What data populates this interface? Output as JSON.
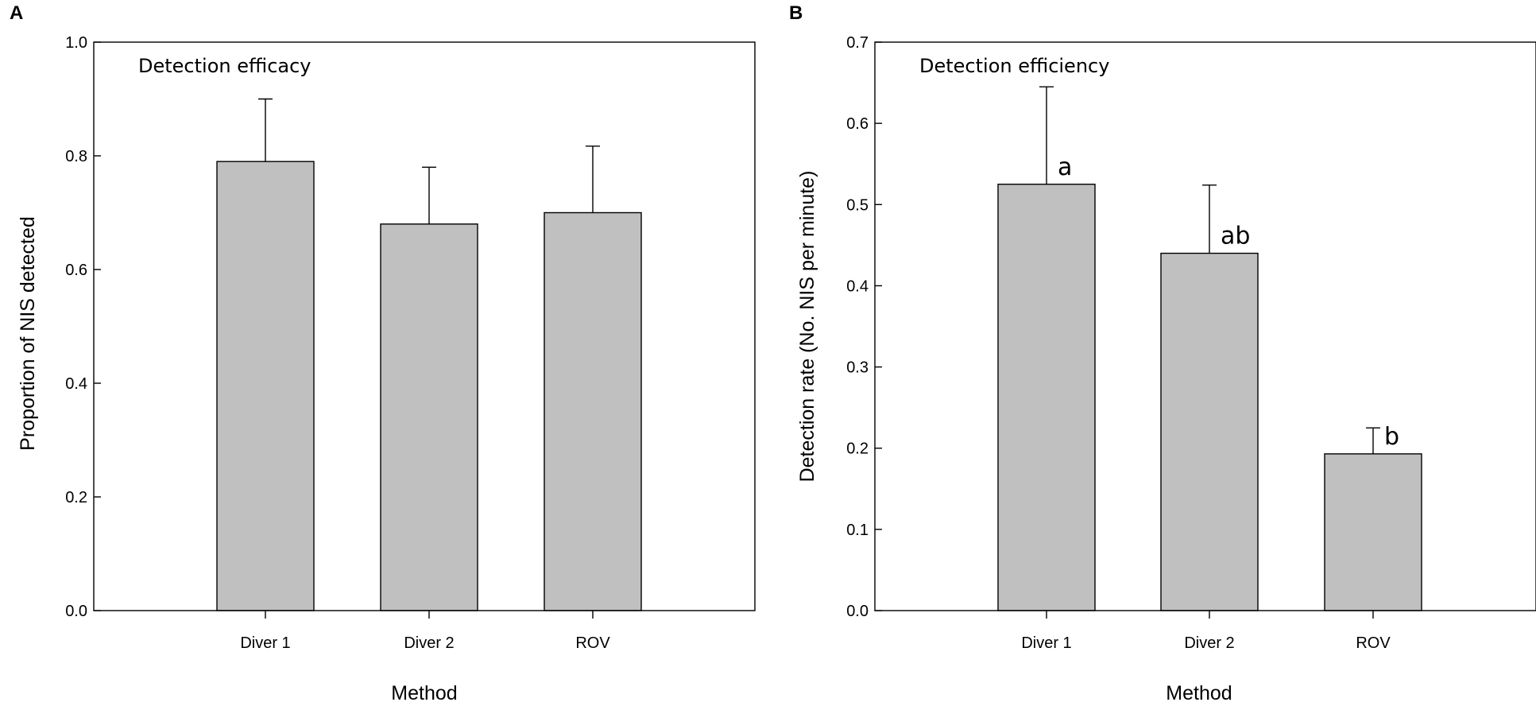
{
  "chart_data": [
    {
      "panel": "A",
      "type": "bar",
      "title": "Detection efficacy",
      "xlabel": "Method",
      "ylabel": "Proportion of NIS detected",
      "categories": [
        "Diver 1",
        "Diver 2",
        "ROV"
      ],
      "values": [
        0.79,
        0.68,
        0.7
      ],
      "error_upper": [
        0.9,
        0.78,
        0.817
      ],
      "ylim": [
        0.0,
        1.0
      ],
      "yticks": [
        0.0,
        0.2,
        0.4,
        0.6,
        0.8,
        1.0
      ],
      "ytick_labels": [
        "0.0",
        "0.2",
        "0.4",
        "0.6",
        "0.8",
        "1.0"
      ],
      "annotations": [],
      "bar_color": "#c0c0c0",
      "grid": false
    },
    {
      "panel": "B",
      "type": "bar",
      "title": "Detection efficiency",
      "xlabel": "Method",
      "ylabel": "Detection rate (No. NIS per minute)",
      "categories": [
        "Diver 1",
        "Diver 2",
        "ROV"
      ],
      "values": [
        0.525,
        0.44,
        0.193
      ],
      "error_upper": [
        0.645,
        0.524,
        0.225
      ],
      "ylim": [
        0.0,
        0.7
      ],
      "yticks": [
        0.0,
        0.1,
        0.2,
        0.3,
        0.4,
        0.5,
        0.6,
        0.7
      ],
      "ytick_labels": [
        "0.0",
        "0.1",
        "0.2",
        "0.3",
        "0.4",
        "0.5",
        "0.6",
        "0.7"
      ],
      "annotations": [
        "a",
        "ab",
        "b"
      ],
      "bar_color": "#c0c0c0",
      "grid": false
    }
  ]
}
